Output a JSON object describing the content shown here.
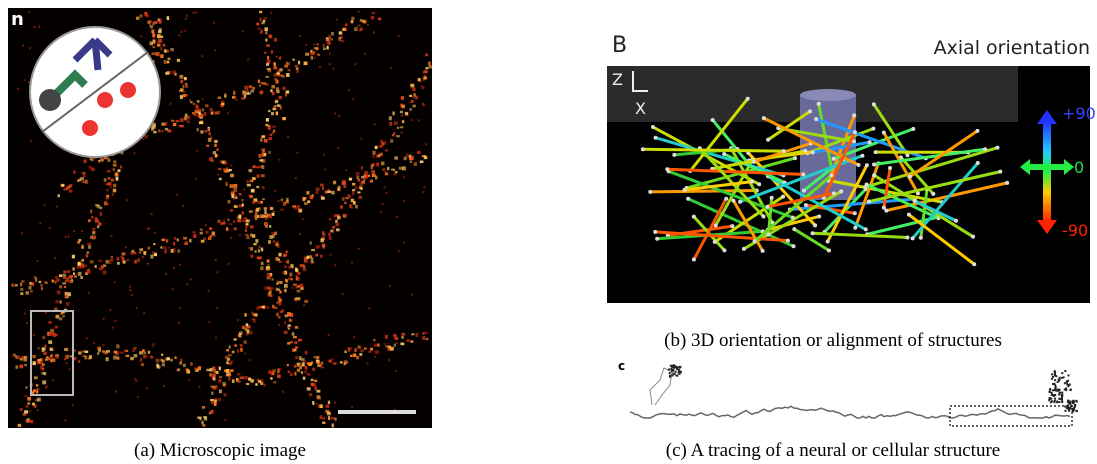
{
  "panel_a": {
    "label": "n",
    "caption": "(a) Microscopic image"
  },
  "panel_b": {
    "label": "B",
    "title": "Axial orientation",
    "axis_labels": [
      "Z",
      "X"
    ],
    "colorbar_labels": [
      "+90",
      "0",
      "-90"
    ],
    "caption": "(b) 3D orientation or alignment of structures"
  },
  "panel_c": {
    "label": "c",
    "caption": "(c) A tracing of a neural or cellular structure"
  }
}
